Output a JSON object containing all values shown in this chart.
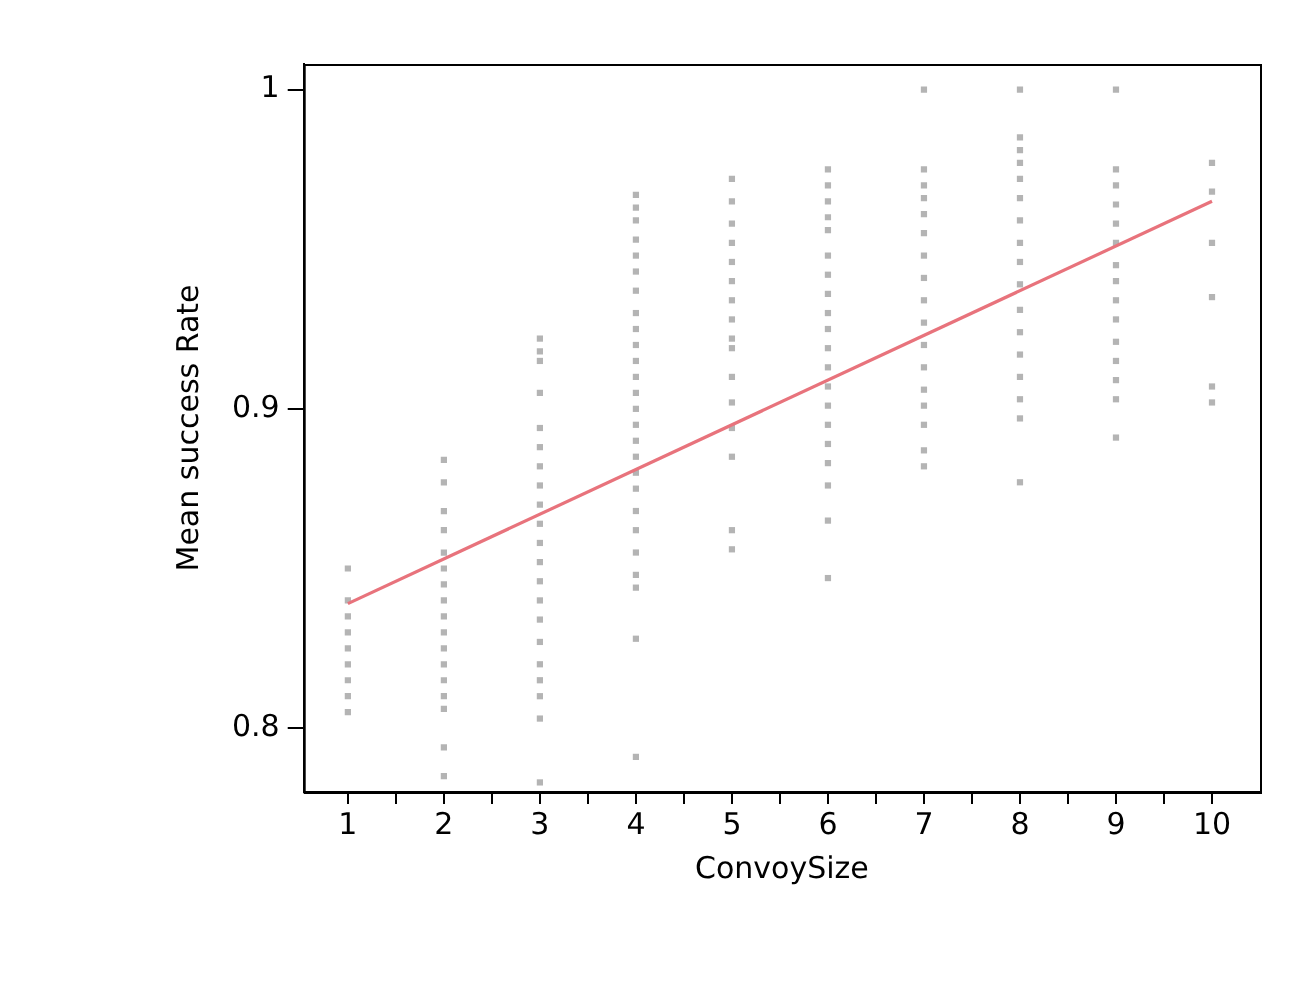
{
  "chart_data": {
    "type": "scatter",
    "xlabel": "ConvoySize",
    "ylabel": "Mean success Rate",
    "xlim": [
      0.54,
      10.5
    ],
    "ylim": [
      0.78,
      1.008
    ],
    "xticks": [
      1,
      {
        "value": 1.5,
        "label": null
      },
      2,
      {
        "value": 2.5,
        "label": null
      },
      3,
      {
        "value": 3.5,
        "label": null
      },
      4,
      {
        "value": 4.5,
        "label": null
      },
      5,
      {
        "value": 5.5,
        "label": null
      },
      6,
      {
        "value": 6.5,
        "label": null
      },
      7,
      {
        "value": 7.5,
        "label": null
      },
      8,
      {
        "value": 8.5,
        "label": null
      },
      9,
      {
        "value": 9.5,
        "label": null
      },
      10
    ],
    "yticks": [
      0.8,
      0.9,
      {
        "value": 1,
        "label": "1"
      }
    ],
    "grid": false,
    "legend": false,
    "marker": "square",
    "series": [
      {
        "color": "#b4b4b4",
        "x": [
          1,
          1,
          1,
          1,
          1,
          1,
          1,
          1,
          1,
          2,
          2,
          2,
          2,
          2,
          2,
          2,
          2,
          2,
          2,
          2,
          2,
          2,
          2,
          2,
          2,
          2,
          3,
          3,
          3,
          3,
          3,
          3,
          3,
          3,
          3,
          3,
          3,
          3,
          3,
          3,
          3,
          3,
          3,
          3,
          3,
          3,
          3,
          4,
          4,
          4,
          4,
          4,
          4,
          4,
          4,
          4,
          4,
          4,
          4,
          4,
          4,
          4,
          4,
          4,
          4,
          4,
          4,
          4,
          4,
          4,
          4,
          4,
          4,
          5,
          5,
          5,
          5,
          5,
          5,
          5,
          5,
          5,
          5,
          5,
          5,
          5,
          5,
          5,
          5,
          6,
          6,
          6,
          6,
          6,
          6,
          6,
          6,
          6,
          6,
          6,
          6,
          6,
          6,
          6,
          6,
          6,
          6,
          6,
          6,
          7,
          7,
          7,
          7,
          7,
          7,
          7,
          7,
          7,
          7,
          7,
          7,
          7,
          7,
          7,
          7,
          7,
          8,
          8,
          8,
          8,
          8,
          8,
          8,
          8,
          8,
          8,
          8,
          8,
          8,
          8,
          8,
          8,
          8,
          9,
          9,
          9,
          9,
          9,
          9,
          9,
          9,
          9,
          9,
          9,
          9,
          9,
          9,
          9,
          10,
          10,
          10,
          10,
          10,
          10
        ],
        "values": [
          0.85,
          0.84,
          0.835,
          0.83,
          0.825,
          0.82,
          0.815,
          0.81,
          0.805,
          0.884,
          0.877,
          0.868,
          0.862,
          0.855,
          0.85,
          0.845,
          0.84,
          0.835,
          0.83,
          0.825,
          0.82,
          0.815,
          0.81,
          0.806,
          0.794,
          0.785,
          0.922,
          0.918,
          0.915,
          0.905,
          0.894,
          0.888,
          0.882,
          0.876,
          0.87,
          0.864,
          0.858,
          0.852,
          0.846,
          0.84,
          0.834,
          0.827,
          0.82,
          0.815,
          0.81,
          0.803,
          0.783,
          0.967,
          0.963,
          0.959,
          0.953,
          0.948,
          0.943,
          0.937,
          0.93,
          0.925,
          0.92,
          0.915,
          0.91,
          0.905,
          0.9,
          0.895,
          0.89,
          0.885,
          0.88,
          0.875,
          0.868,
          0.862,
          0.855,
          0.848,
          0.844,
          0.828,
          0.791,
          0.972,
          0.965,
          0.958,
          0.952,
          0.946,
          0.94,
          0.934,
          0.928,
          0.922,
          0.919,
          0.91,
          0.902,
          0.894,
          0.885,
          0.862,
          0.856,
          0.975,
          0.97,
          0.965,
          0.96,
          0.956,
          0.948,
          0.942,
          0.936,
          0.93,
          0.925,
          0.919,
          0.913,
          0.907,
          0.901,
          0.895,
          0.889,
          0.883,
          0.876,
          0.865,
          0.847,
          1.0,
          0.975,
          0.97,
          0.966,
          0.961,
          0.955,
          0.948,
          0.941,
          0.934,
          0.927,
          0.92,
          0.913,
          0.906,
          0.901,
          0.895,
          0.887,
          0.882,
          1.0,
          0.985,
          0.981,
          0.977,
          0.972,
          0.966,
          0.959,
          0.952,
          0.946,
          0.939,
          0.931,
          0.924,
          0.917,
          0.91,
          0.903,
          0.897,
          0.877,
          1.0,
          0.975,
          0.97,
          0.964,
          0.958,
          0.952,
          0.945,
          0.94,
          0.934,
          0.928,
          0.921,
          0.915,
          0.909,
          0.903,
          0.891,
          0.977,
          0.968,
          0.952,
          0.935,
          0.907,
          0.902
        ]
      },
      {
        "type": "line",
        "color": "#e8737c",
        "marker": "none",
        "line_style": "solid",
        "x": [
          1,
          10
        ],
        "values": [
          0.839,
          0.965
        ]
      }
    ]
  }
}
